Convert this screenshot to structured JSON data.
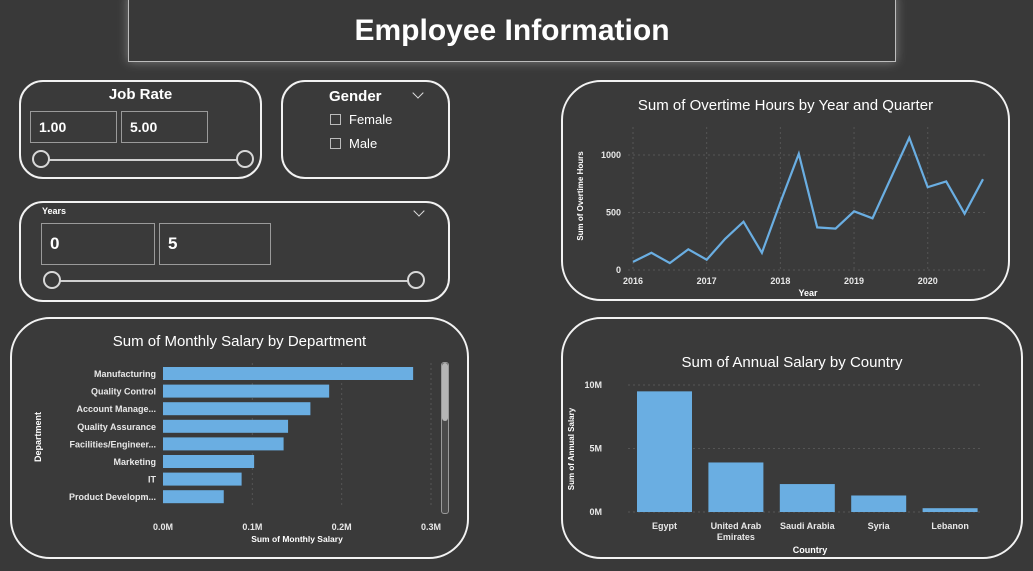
{
  "page": {
    "title": "Employee Information"
  },
  "job_rate_slicer": {
    "title": "Job Rate",
    "min_value": "1.00",
    "max_value": "5.00"
  },
  "gender_slicer": {
    "title": "Gender",
    "options": [
      "Female",
      "Male"
    ]
  },
  "years_slicer": {
    "title": "Years",
    "min_value": "0",
    "max_value": "5"
  },
  "overtime_chart": {
    "title": "Sum of Overtime Hours by Year and Quarter",
    "xlabel": "Year",
    "ylabel": "Sum of Overtime Hours",
    "ytick_labels": [
      "0",
      "500",
      "1000"
    ],
    "xtick_labels": [
      "2016",
      "2017",
      "2018",
      "2019",
      "2020"
    ],
    "line_color": "#6aaee2"
  },
  "salary_dept_chart": {
    "title": "Sum of Monthly Salary by Department",
    "xlabel": "Sum of Monthly Salary",
    "ylabel": "Department",
    "xtick_labels": [
      "0.0M",
      "0.1M",
      "0.2M",
      "0.3M"
    ],
    "bar_color": "#6aaee2"
  },
  "salary_country_chart": {
    "title": "Sum of Annual Salary by Country",
    "xlabel": "Country",
    "ylabel": "Sum of Annual Salary",
    "ytick_labels": [
      "0M",
      "5M",
      "10M"
    ],
    "bar_color": "#6aaee2"
  },
  "chart_data": [
    {
      "type": "line",
      "title": "Sum of Overtime Hours by Year and Quarter",
      "xlabel": "Year",
      "ylabel": "Sum of Overtime Hours",
      "x": [
        "2016 Q1",
        "2016 Q2",
        "2016 Q3",
        "2016 Q4",
        "2017 Q1",
        "2017 Q2",
        "2017 Q3",
        "2017 Q4",
        "2018 Q1",
        "2018 Q2",
        "2018 Q3",
        "2018 Q4",
        "2019 Q1",
        "2019 Q2",
        "2019 Q3",
        "2019 Q4",
        "2020 Q1",
        "2020 Q2",
        "2020 Q3",
        "2020 Q4"
      ],
      "values": [
        70,
        150,
        60,
        180,
        90,
        270,
        420,
        150,
        590,
        1010,
        370,
        360,
        510,
        450,
        800,
        1150,
        720,
        770,
        490,
        790
      ],
      "ylim": [
        0,
        1200
      ],
      "grid": true
    },
    {
      "type": "bar",
      "orientation": "horizontal",
      "title": "Sum of Monthly Salary by Department",
      "xlabel": "Sum of Monthly Salary",
      "ylabel": "Department",
      "categories": [
        "Manufacturing",
        "Quality Control",
        "Account Manage...",
        "Quality Assurance",
        "Facilities/Engineer...",
        "Marketing",
        "IT",
        "Product Developm..."
      ],
      "values": [
        0.28,
        0.186,
        0.165,
        0.14,
        0.135,
        0.102,
        0.088,
        0.068
      ],
      "unit": "M",
      "xlim": [
        0,
        0.3
      ]
    },
    {
      "type": "bar",
      "title": "Sum of Annual Salary by Country",
      "xlabel": "Country",
      "ylabel": "Sum of Annual Salary",
      "categories": [
        "Egypt",
        "United Arab Emirates",
        "Saudi Arabia",
        "Syria",
        "Lebanon"
      ],
      "values": [
        9.5,
        3.9,
        2.2,
        1.3,
        0.3
      ],
      "unit": "M",
      "ylim": [
        0,
        10
      ]
    }
  ]
}
